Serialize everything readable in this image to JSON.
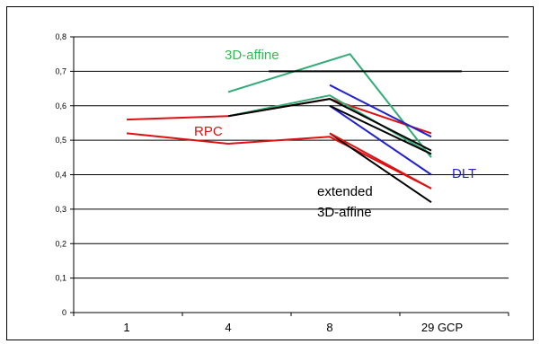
{
  "chart_data": {
    "type": "line",
    "categories": [
      "1",
      "4",
      "8",
      "29 GCP"
    ],
    "ylim": [
      0,
      0.8
    ],
    "yticks": [
      "0",
      "0,1",
      "0,2",
      "0,3",
      "0,4",
      "0,5",
      "0,6",
      "0,7",
      "0,8"
    ],
    "grid": true,
    "legend": "none",
    "annotations": [
      {
        "text": "3D-affine",
        "color": "#33bb55"
      },
      {
        "text": "RPC",
        "color": "#dd1111"
      },
      {
        "text": "DLT",
        "color": "#2222cc"
      },
      {
        "text": "extended",
        "color": "#000000"
      },
      {
        "text": "3D-affine",
        "color": "#000000"
      }
    ],
    "series": [
      {
        "color": "#33aa77",
        "points": [
          [
            1.0,
            0.64
          ],
          [
            2.2,
            0.75
          ],
          [
            3.0,
            0.45
          ]
        ]
      },
      {
        "color": "#000000",
        "points": [
          [
            1.4,
            0.7
          ],
          [
            3.3,
            0.7
          ]
        ]
      },
      {
        "color": "#dd1111",
        "points": [
          [
            0.0,
            0.56
          ],
          [
            1.0,
            0.57
          ],
          [
            2.0,
            0.62
          ],
          [
            3.0,
            0.52
          ]
        ]
      },
      {
        "color": "#dd1111",
        "points": [
          [
            0.0,
            0.52
          ],
          [
            1.0,
            0.49
          ],
          [
            2.0,
            0.51
          ],
          [
            3.0,
            0.36
          ]
        ]
      },
      {
        "color": "#33aa77",
        "points": [
          [
            1.0,
            0.57
          ],
          [
            2.0,
            0.63
          ],
          [
            3.0,
            0.46
          ]
        ]
      },
      {
        "color": "#000000",
        "points": [
          [
            1.0,
            0.57
          ],
          [
            2.0,
            0.62
          ],
          [
            3.0,
            0.47
          ]
        ]
      },
      {
        "color": "#2222cc",
        "points": [
          [
            2.0,
            0.66
          ],
          [
            3.0,
            0.51
          ]
        ]
      },
      {
        "color": "#2222cc",
        "points": [
          [
            2.0,
            0.6
          ],
          [
            3.0,
            0.4
          ]
        ]
      },
      {
        "color": "#000000",
        "points": [
          [
            2.0,
            0.6
          ],
          [
            3.0,
            0.46
          ]
        ]
      },
      {
        "color": "#000000",
        "points": [
          [
            2.0,
            0.52
          ],
          [
            3.0,
            0.32
          ]
        ]
      },
      {
        "color": "#dd1111",
        "points": [
          [
            2.0,
            0.52
          ],
          [
            3.0,
            0.36
          ]
        ]
      }
    ]
  }
}
